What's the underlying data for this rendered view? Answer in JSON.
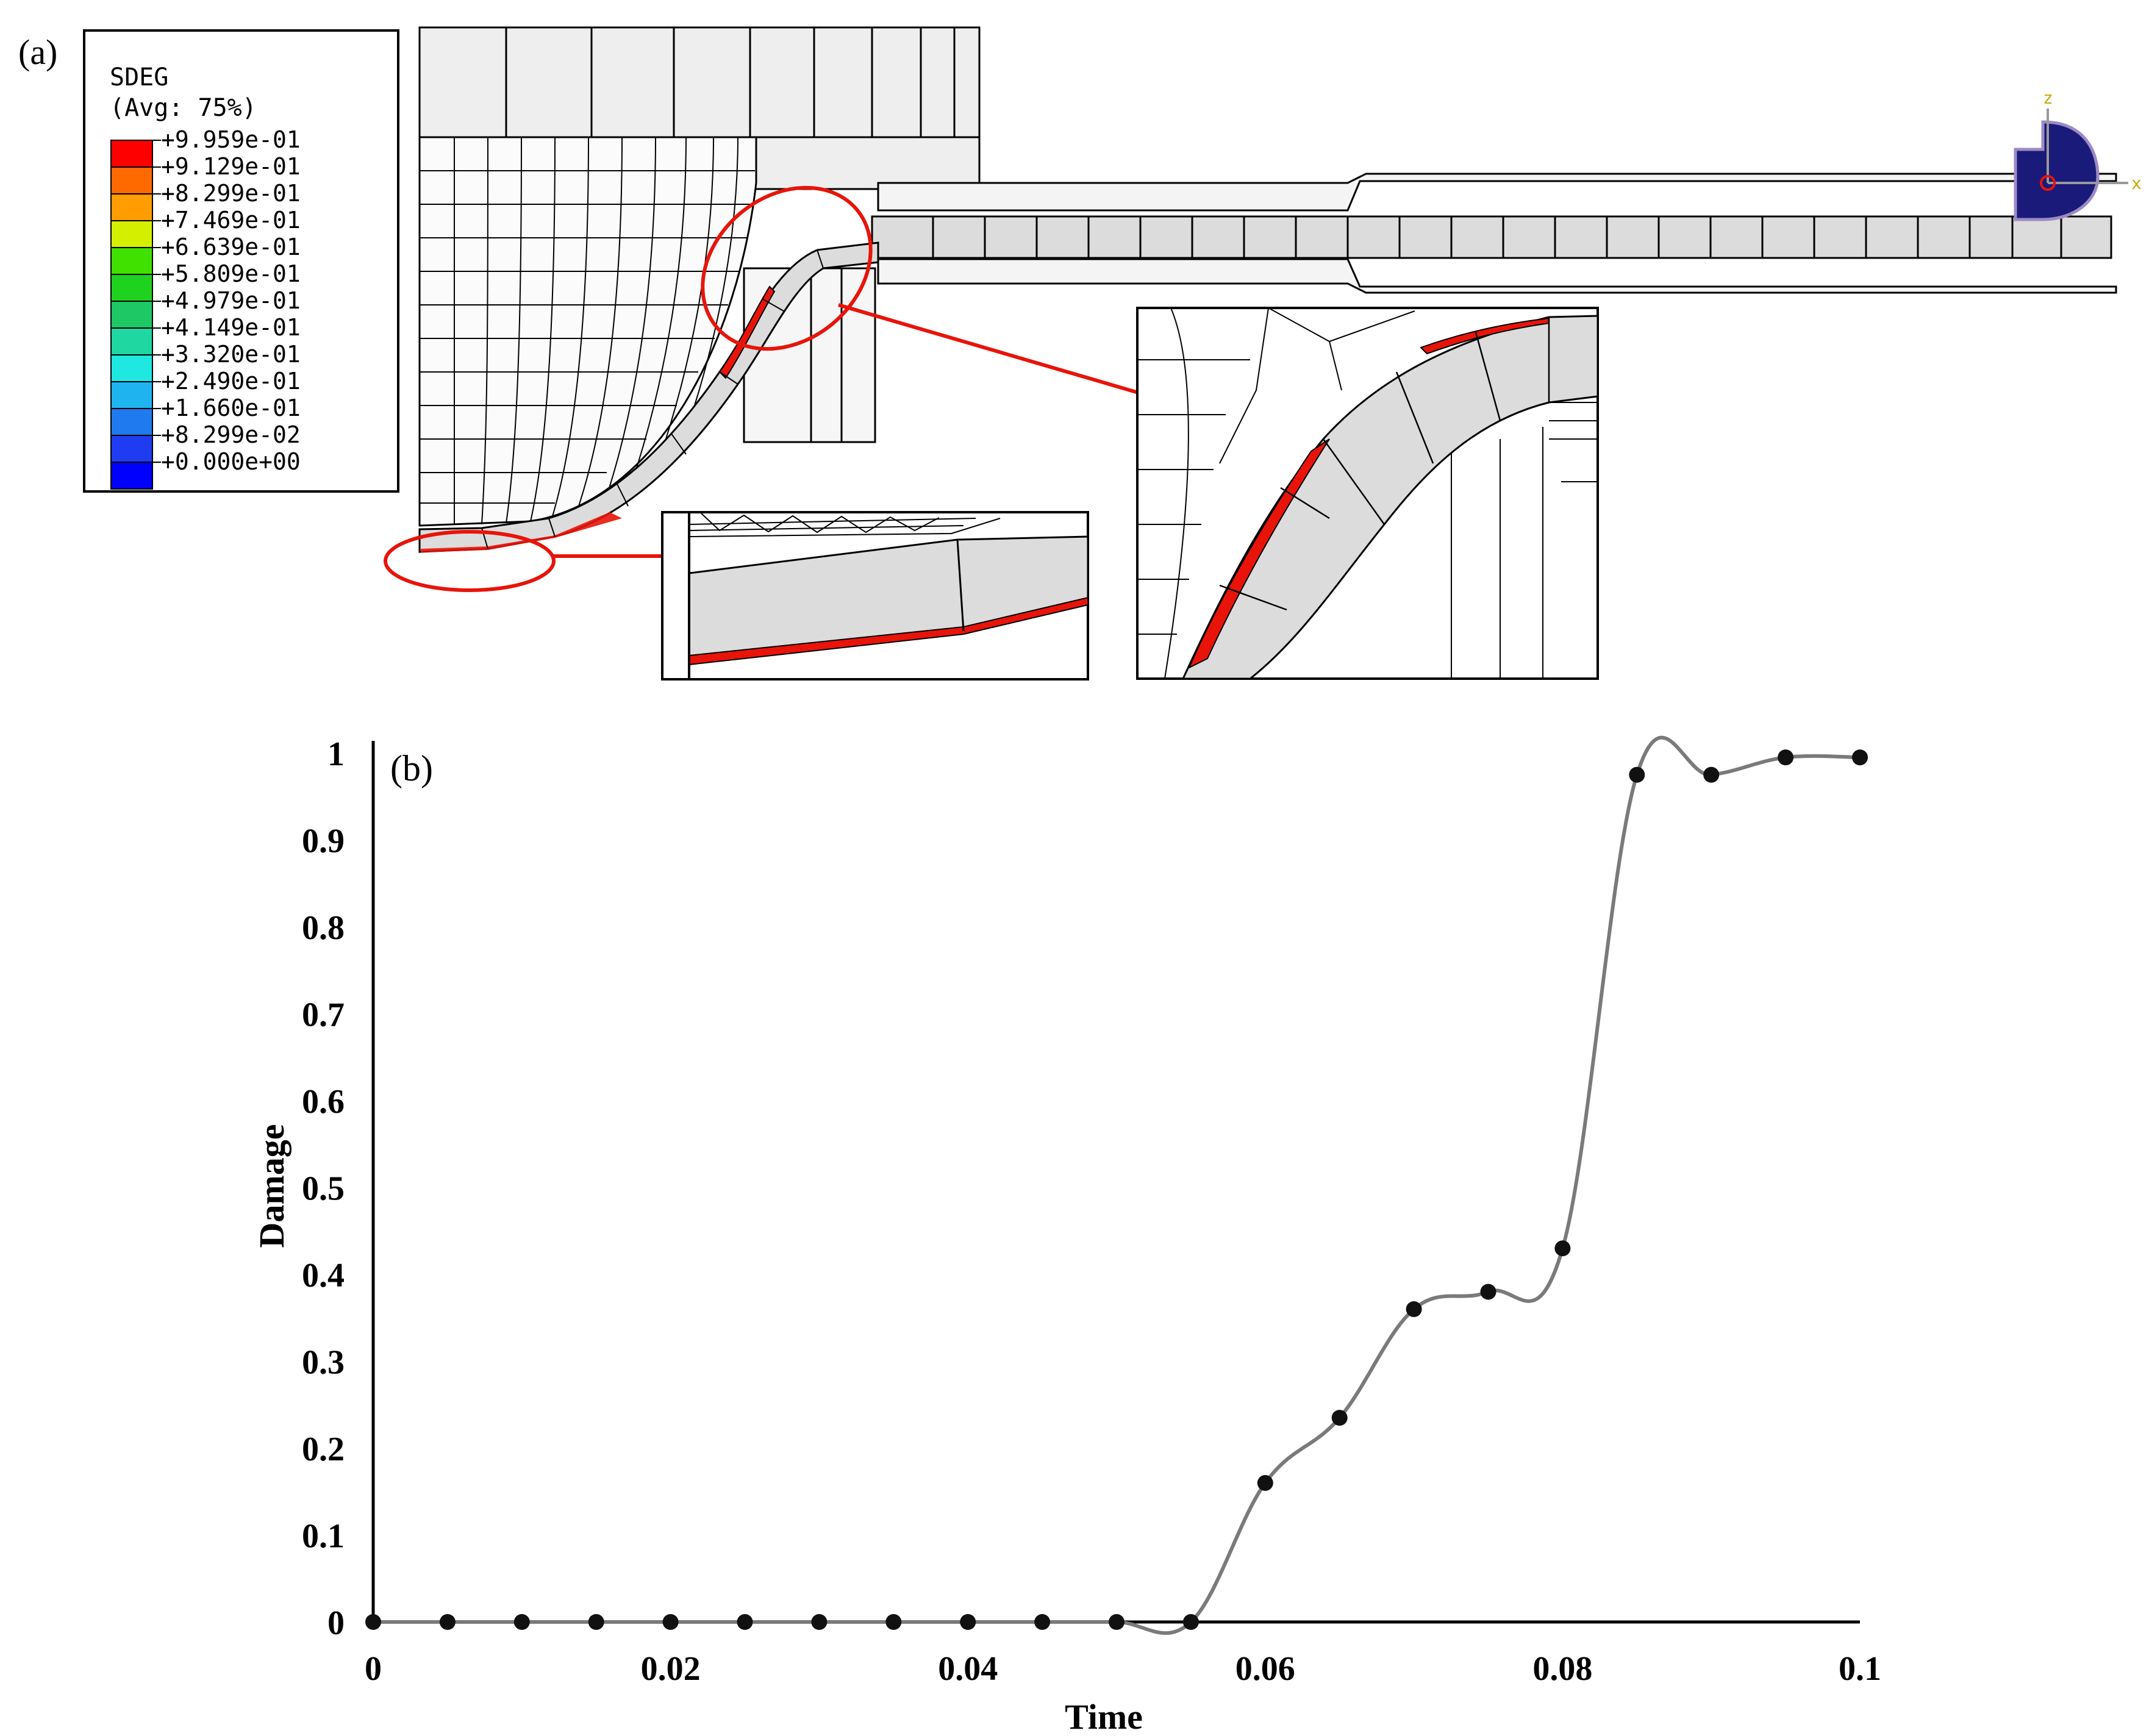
{
  "panel_a": {
    "label": "(a)",
    "legend": {
      "title": "SDEG",
      "subtitle": "(Avg: 75%)",
      "entries": [
        {
          "value": "+9.959e-01",
          "color": "#ff0000"
        },
        {
          "value": "+9.129e-01",
          "color": "#ff6a00"
        },
        {
          "value": "+8.299e-01",
          "color": "#ff9c00"
        },
        {
          "value": "+7.469e-01",
          "color": "#d4f000"
        },
        {
          "value": "+6.639e-01",
          "color": "#40e000"
        },
        {
          "value": "+5.809e-01",
          "color": "#1fd21f"
        },
        {
          "value": "+4.979e-01",
          "color": "#1ec864"
        },
        {
          "value": "+4.149e-01",
          "color": "#1fd7a0"
        },
        {
          "value": "+3.320e-01",
          "color": "#1fe8e0"
        },
        {
          "value": "+2.490e-01",
          "color": "#1fb4f0"
        },
        {
          "value": "+1.660e-01",
          "color": "#1f7af0"
        },
        {
          "value": "+8.299e-02",
          "color": "#1f3cf0"
        },
        {
          "value": "+0.000e+00",
          "color": "#0000ff"
        }
      ]
    },
    "triad": {
      "axis_up": "z",
      "axis_right": "x"
    },
    "highlight_color": "#e8140a",
    "mesh_fill": "#dcdcdc"
  },
  "panel_b": {
    "label": "(b)",
    "chart_data": {
      "type": "line",
      "title": "",
      "xlabel": "Time",
      "ylabel": "Damage",
      "xlim": [
        0,
        0.1
      ],
      "ylim": [
        0,
        1
      ],
      "xticks": [
        0,
        0.02,
        0.04,
        0.06,
        0.08,
        0.1
      ],
      "xtick_labels": [
        "0",
        "0.02",
        "0.04",
        "0.06",
        "0.08",
        "0.1"
      ],
      "yticks": [
        0,
        0.1,
        0.2,
        0.3,
        0.4,
        0.5,
        0.6,
        0.7,
        0.8,
        0.9,
        1
      ],
      "ytick_labels": [
        "0",
        "0.1",
        "0.2",
        "0.3",
        "0.4",
        "0.5",
        "0.6",
        "0.7",
        "0.8",
        "0.9",
        "1"
      ],
      "grid": false,
      "series": [
        {
          "x": [
            0,
            0.005,
            0.01,
            0.015,
            0.02,
            0.025,
            0.03,
            0.035,
            0.04,
            0.045,
            0.05,
            0.055,
            0.06,
            0.065,
            0.07,
            0.075,
            0.08,
            0.085,
            0.09,
            0.095,
            0.1
          ],
          "y": [
            0,
            0,
            0,
            0,
            0,
            0,
            0,
            0,
            0,
            0,
            0,
            0,
            0.16,
            0.235,
            0.36,
            0.38,
            0.43,
            0.975,
            0.975,
            0.995,
            0.995
          ]
        }
      ]
    }
  }
}
